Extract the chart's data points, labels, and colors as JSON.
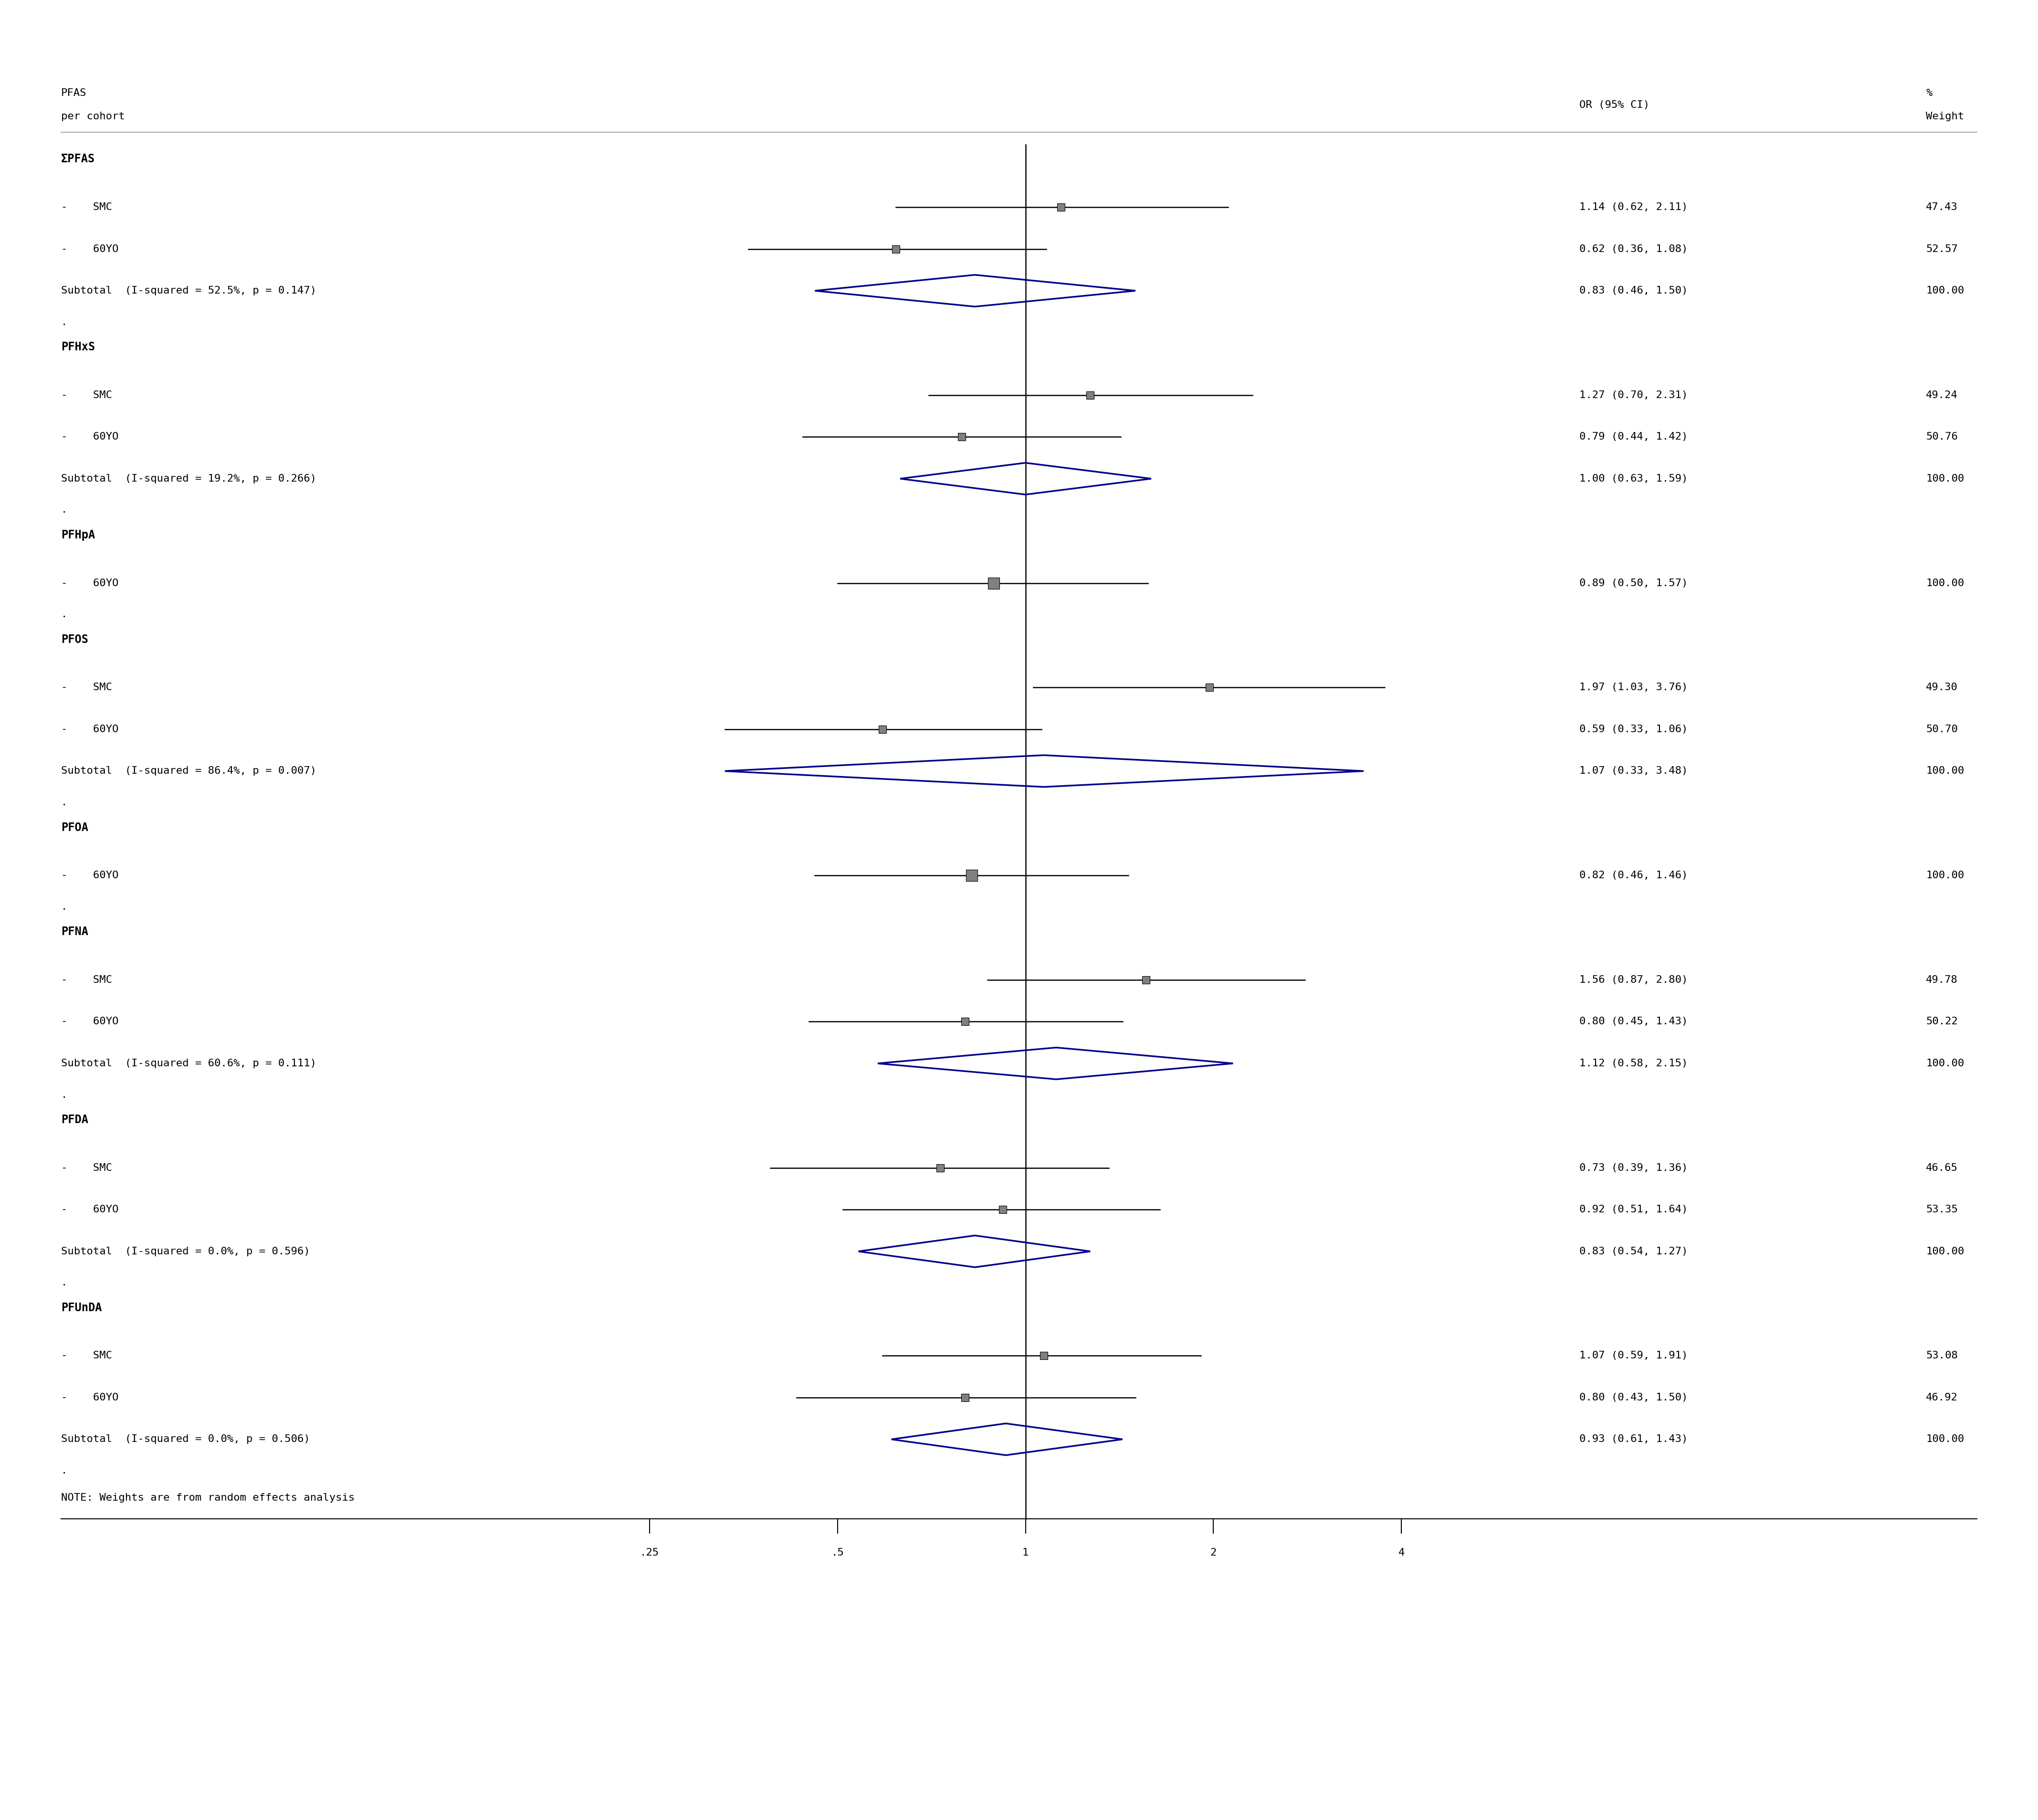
{
  "header_col1": "PFAS\nper cohort",
  "header_col2": "OR (95% CI)",
  "header_col3": "%\nWeight",
  "note": "NOTE: Weights are from random effects analysis",
  "xticks": [
    0.25,
    0.5,
    1.0,
    2.0,
    4.0
  ],
  "xticklabels": [
    ".25",
    ".5",
    "1",
    "2",
    "4"
  ],
  "xmin": 0.18,
  "xmax": 5.5,
  "groups": [
    {
      "name": "ΣPFAS",
      "rows": [
        {
          "label": "-    SMC",
          "or": 1.14,
          "ci_lo": 0.62,
          "ci_hi": 2.11,
          "weight": "47.43",
          "or_text": "1.14 (0.62, 2.11)",
          "type": "study"
        },
        {
          "label": "-    60YO",
          "or": 0.62,
          "ci_lo": 0.36,
          "ci_hi": 1.08,
          "weight": "52.57",
          "or_text": "0.62 (0.36, 1.08)",
          "type": "study"
        },
        {
          "label": "Subtotal  (I-squared = 52.5%, p = 0.147)",
          "or": 0.83,
          "ci_lo": 0.46,
          "ci_hi": 1.5,
          "weight": "100.00",
          "or_text": "0.83 (0.46, 1.50)",
          "type": "subtotal"
        }
      ]
    },
    {
      "name": "PFHxS",
      "rows": [
        {
          "label": "-    SMC",
          "or": 1.27,
          "ci_lo": 0.7,
          "ci_hi": 2.31,
          "weight": "49.24",
          "or_text": "1.27 (0.70, 2.31)",
          "type": "study"
        },
        {
          "label": "-    60YO",
          "or": 0.79,
          "ci_lo": 0.44,
          "ci_hi": 1.42,
          "weight": "50.76",
          "or_text": "0.79 (0.44, 1.42)",
          "type": "study"
        },
        {
          "label": "Subtotal  (I-squared = 19.2%, p = 0.266)",
          "or": 1.0,
          "ci_lo": 0.63,
          "ci_hi": 1.59,
          "weight": "100.00",
          "or_text": "1.00 (0.63, 1.59)",
          "type": "subtotal"
        }
      ]
    },
    {
      "name": "PFHpA",
      "rows": [
        {
          "label": "-    60YO",
          "or": 0.89,
          "ci_lo": 0.5,
          "ci_hi": 1.57,
          "weight": "100.00",
          "or_text": "0.89 (0.50, 1.57)",
          "type": "study"
        }
      ]
    },
    {
      "name": "PFOS",
      "rows": [
        {
          "label": "-    SMC",
          "or": 1.97,
          "ci_lo": 1.03,
          "ci_hi": 3.76,
          "weight": "49.30",
          "or_text": "1.97 (1.03, 3.76)",
          "type": "study"
        },
        {
          "label": "-    60YO",
          "or": 0.59,
          "ci_lo": 0.33,
          "ci_hi": 1.06,
          "weight": "50.70",
          "or_text": "0.59 (0.33, 1.06)",
          "type": "study"
        },
        {
          "label": "Subtotal  (I-squared = 86.4%, p = 0.007)",
          "or": 1.07,
          "ci_lo": 0.33,
          "ci_hi": 3.48,
          "weight": "100.00",
          "or_text": "1.07 (0.33, 3.48)",
          "type": "subtotal"
        }
      ]
    },
    {
      "name": "PFOA",
      "rows": [
        {
          "label": "-    60YO",
          "or": 0.82,
          "ci_lo": 0.46,
          "ci_hi": 1.46,
          "weight": "100.00",
          "or_text": "0.82 (0.46, 1.46)",
          "type": "study"
        }
      ]
    },
    {
      "name": "PFNA",
      "rows": [
        {
          "label": "-    SMC",
          "or": 1.56,
          "ci_lo": 0.87,
          "ci_hi": 2.8,
          "weight": "49.78",
          "or_text": "1.56 (0.87, 2.80)",
          "type": "study"
        },
        {
          "label": "-    60YO",
          "or": 0.8,
          "ci_lo": 0.45,
          "ci_hi": 1.43,
          "weight": "50.22",
          "or_text": "0.80 (0.45, 1.43)",
          "type": "study"
        },
        {
          "label": "Subtotal  (I-squared = 60.6%, p = 0.111)",
          "or": 1.12,
          "ci_lo": 0.58,
          "ci_hi": 2.15,
          "weight": "100.00",
          "or_text": "1.12 (0.58, 2.15)",
          "type": "subtotal"
        }
      ]
    },
    {
      "name": "PFDA",
      "rows": [
        {
          "label": "-    SMC",
          "or": 0.73,
          "ci_lo": 0.39,
          "ci_hi": 1.36,
          "weight": "46.65",
          "or_text": "0.73 (0.39, 1.36)",
          "type": "study"
        },
        {
          "label": "-    60YO",
          "or": 0.92,
          "ci_lo": 0.51,
          "ci_hi": 1.64,
          "weight": "53.35",
          "or_text": "0.92 (0.51, 1.64)",
          "type": "study"
        },
        {
          "label": "Subtotal  (I-squared = 0.0%, p = 0.596)",
          "or": 0.83,
          "ci_lo": 0.54,
          "ci_hi": 1.27,
          "weight": "100.00",
          "or_text": "0.83 (0.54, 1.27)",
          "type": "subtotal"
        }
      ]
    },
    {
      "name": "PFUnDA",
      "rows": [
        {
          "label": "-    SMC",
          "or": 1.07,
          "ci_lo": 0.59,
          "ci_hi": 1.91,
          "weight": "53.08",
          "or_text": "1.07 (0.59, 1.91)",
          "type": "study"
        },
        {
          "label": "-    60YO",
          "or": 0.8,
          "ci_lo": 0.43,
          "ci_hi": 1.5,
          "weight": "46.92",
          "or_text": "0.80 (0.43, 1.50)",
          "type": "study"
        },
        {
          "label": "Subtotal  (I-squared = 0.0%, p = 0.506)",
          "or": 0.93,
          "ci_lo": 0.61,
          "ci_hi": 1.43,
          "weight": "100.00",
          "or_text": "0.93 (0.61, 1.43)",
          "type": "subtotal"
        }
      ]
    }
  ],
  "diamond_color": "#00008B",
  "study_marker_color": "#808080",
  "study_marker_edge": "#000000",
  "line_color": "#000000",
  "text_color": "#000000",
  "header_line_color": "#aaaaaa",
  "bottom_line_color": "#000000"
}
